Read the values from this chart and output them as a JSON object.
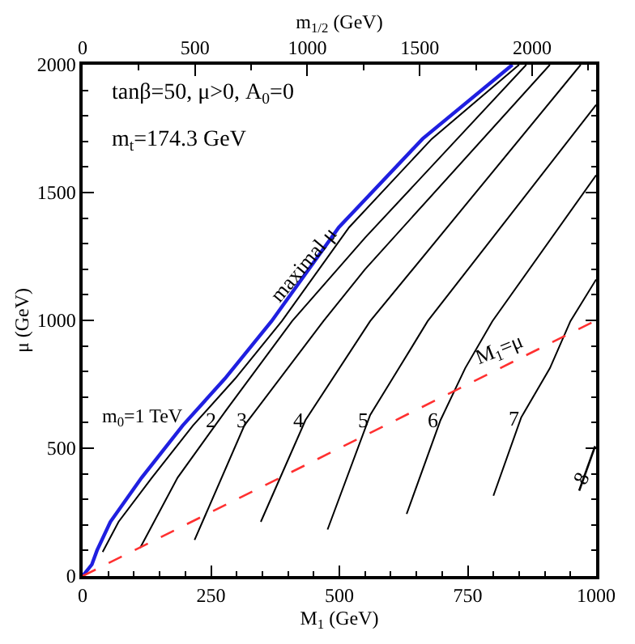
{
  "chart_data": {
    "type": "line",
    "xlabel": "M$_{1}$ (GeV)",
    "ylabel": "μ (GeV)",
    "x2label": "m$_{1/2}$ (GeV)",
    "xlim": [
      0,
      1000
    ],
    "ylim": [
      0,
      2000
    ],
    "x2lim": [
      0,
      2285
    ],
    "xticks": [
      0,
      {
        "value": 50,
        "label": null
      },
      {
        "value": 100,
        "label": null
      },
      {
        "value": 150,
        "label": null
      },
      {
        "value": 200,
        "label": null
      },
      250,
      {
        "value": 300,
        "label": null
      },
      {
        "value": 350,
        "label": null
      },
      {
        "value": 400,
        "label": null
      },
      {
        "value": 450,
        "label": null
      },
      500,
      {
        "value": 550,
        "label": null
      },
      {
        "value": 600,
        "label": null
      },
      {
        "value": 650,
        "label": null
      },
      {
        "value": 700,
        "label": null
      },
      750,
      {
        "value": 800,
        "label": null
      },
      {
        "value": 850,
        "label": null
      },
      {
        "value": 900,
        "label": null
      },
      {
        "value": 950,
        "label": null
      },
      1000
    ],
    "yticks": [
      0,
      {
        "value": 100,
        "label": null
      },
      {
        "value": 200,
        "label": null
      },
      {
        "value": 300,
        "label": null
      },
      {
        "value": 400,
        "label": null
      },
      500,
      {
        "value": 600,
        "label": null
      },
      {
        "value": 700,
        "label": null
      },
      {
        "value": 800,
        "label": null
      },
      {
        "value": 900,
        "label": null
      },
      1000,
      {
        "value": 1100,
        "label": null
      },
      {
        "value": 1200,
        "label": null
      },
      {
        "value": 1300,
        "label": null
      },
      {
        "value": 1400,
        "label": null
      },
      1500,
      {
        "value": 1600,
        "label": null
      },
      {
        "value": 1700,
        "label": null
      },
      {
        "value": 1800,
        "label": null
      },
      {
        "value": 1900,
        "label": null
      },
      2000
    ],
    "x2ticks": [
      0,
      {
        "value": 250,
        "label": null
      },
      500,
      {
        "value": 750,
        "label": null
      },
      1000,
      {
        "value": 1250,
        "label": null
      },
      1500,
      {
        "value": 1750,
        "label": null
      },
      2000,
      {
        "value": 2250,
        "label": null
      }
    ],
    "marker": "none",
    "line_style": "solid",
    "series": [
      {
        "color": "#1f1fe0",
        "x": [
          0,
          18,
          28,
          54,
          115,
          195,
          277,
          368,
          499,
          662,
          837
        ],
        "values": [
          0,
          45,
          100,
          212,
          385,
          589,
          772,
          997,
          1364,
          1710,
          2000
        ]
      },
      {
        "color": "#000000",
        "x": [
          39,
          70,
          135,
          215,
          297,
          388,
          519,
          680,
          850
        ],
        "values": [
          94,
          212,
          385,
          589,
          772,
          997,
          1364,
          1710,
          2000
        ]
      },
      {
        "color": "#000000",
        "x": [
          112,
          185,
          280,
          408,
          550,
          864
        ],
        "values": [
          110,
          385,
          650,
          997,
          1323,
          2000
        ]
      },
      {
        "color": "#000000",
        "x": [
          218,
          315,
          469,
          550,
          910
        ],
        "values": [
          141,
          589,
          997,
          1200,
          2000
        ]
      },
      {
        "color": "#000000",
        "x": [
          347,
          434,
          560,
          970
        ],
        "values": [
          212,
          610,
          997,
          2000
        ]
      },
      {
        "color": "#000000",
        "x": [
          477,
          560,
          616,
          672,
          1000
        ],
        "values": [
          182,
          630,
          813,
          997,
          1843
        ]
      },
      {
        "color": "#000000",
        "x": [
          631,
          697,
          745,
          798,
          1000
        ],
        "values": [
          243,
          610,
          813,
          997,
          1568
        ]
      },
      {
        "color": "#000000",
        "x": [
          800,
          854,
          910,
          950,
          1000
        ],
        "values": [
          314,
          620,
          813,
          997,
          1160
        ]
      },
      {
        "color": "#000000",
        "x": [
          967,
          998
        ],
        "values": [
          334,
          508
        ]
      },
      {
        "color": "#ff3030",
        "line_style": "dashed",
        "x": [
          0,
          1000
        ],
        "values": [
          0,
          1000
        ]
      }
    ],
    "annotations": [
      "tanβ=50, μ>0, A$_{0}$=0",
      "m$_{t}$=174.3 GeV",
      {
        "text": "maximal μ",
        "x": 428,
        "y": 1221
      },
      "m$_{0}$=1 TeV",
      {
        "text": "2",
        "x": 250,
        "y": 612
      },
      {
        "text": "3",
        "x": 312,
        "y": 612
      },
      {
        "text": "4",
        "x": 420,
        "y": 612
      },
      {
        "text": "5",
        "x": 546,
        "y": 612
      },
      {
        "text": "6",
        "x": 683,
        "y": 612
      },
      {
        "text": "7",
        "x": 840,
        "y": 620
      },
      {
        "text": "8",
        "x": 970,
        "y": 385
      },
      {
        "text": "M$_{1}$=μ",
        "x": 810,
        "y": 810
      }
    ]
  }
}
